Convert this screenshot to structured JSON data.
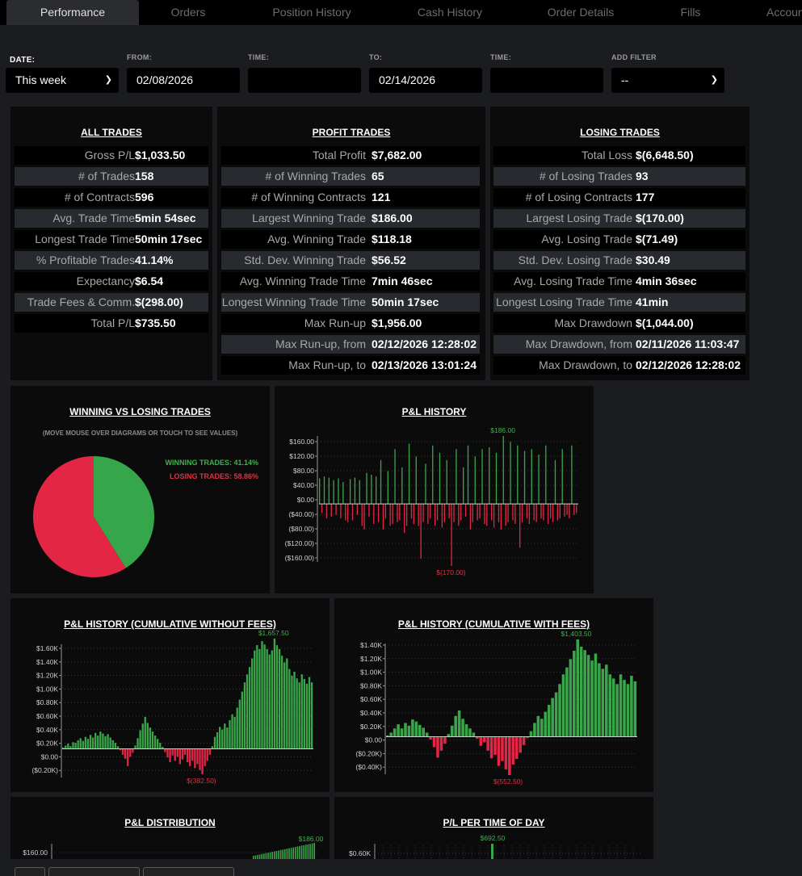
{
  "tabs": [
    {
      "label": "Performance",
      "active": true
    },
    {
      "label": "Orders"
    },
    {
      "label": "Position History"
    },
    {
      "label": "Cash History"
    },
    {
      "label": "Order Details"
    },
    {
      "label": "Fills"
    },
    {
      "label": "Accoun"
    }
  ],
  "filters": {
    "date_label": "DATE:",
    "date_value": "This week",
    "from_label": "FROM:",
    "from_value": "02/08/2026",
    "time1_label": "TIME:",
    "time1_value": "",
    "to_label": "TO:",
    "to_value": "02/14/2026",
    "time2_label": "TIME:",
    "time2_value": "",
    "add_filter_label": "ADD FILTER",
    "add_filter_value": "--"
  },
  "all_trades": {
    "title": "ALL TRADES",
    "rows": [
      {
        "label": "Gross P/L",
        "value": "$1,033.50"
      },
      {
        "label": "# of Trades",
        "value": "158"
      },
      {
        "label": "# of Contracts",
        "value": "596"
      },
      {
        "label": "Avg. Trade Time",
        "value": "5min 54sec"
      },
      {
        "label": "Longest Trade Time",
        "value": "50min 17sec"
      },
      {
        "label": "% Profitable Trades",
        "value": "41.14%"
      },
      {
        "label": "Expectancy",
        "value": "$6.54"
      },
      {
        "label": "Trade Fees & Comm.",
        "value": "$(298.00)"
      },
      {
        "label": "Total P/L",
        "value": "$735.50"
      }
    ]
  },
  "profit_trades": {
    "title": "PROFIT TRADES",
    "rows": [
      {
        "label": "Total Profit",
        "value": "$7,682.00"
      },
      {
        "label": "# of Winning Trades",
        "value": "65"
      },
      {
        "label": "# of Winning Contracts",
        "value": "121"
      },
      {
        "label": "Largest Winning Trade",
        "value": "$186.00"
      },
      {
        "label": "Avg. Winning Trade",
        "value": "$118.18"
      },
      {
        "label": "Std. Dev. Winning Trade",
        "value": "$56.52"
      },
      {
        "label": "Avg. Winning Trade Time",
        "value": "7min 46sec"
      },
      {
        "label": "Longest Winning Trade Time",
        "value": "50min 17sec"
      },
      {
        "label": "Max Run-up",
        "value": "$1,956.00"
      },
      {
        "label": "Max Run-up, from",
        "value": "02/12/2026 12:28:02"
      },
      {
        "label": "Max Run-up, to",
        "value": "02/13/2026 13:01:24"
      }
    ]
  },
  "losing_trades": {
    "title": "LOSING TRADES",
    "rows": [
      {
        "label": "Total Loss",
        "value": "$(6,648.50)"
      },
      {
        "label": "# of Losing Trades",
        "value": "93"
      },
      {
        "label": "# of Losing Contracts",
        "value": "177"
      },
      {
        "label": "Largest Losing Trade",
        "value": "$(170.00)"
      },
      {
        "label": "Avg. Losing Trade",
        "value": "$(71.49)"
      },
      {
        "label": "Std. Dev. Losing Trade",
        "value": "$30.49"
      },
      {
        "label": "Avg. Losing Trade Time",
        "value": "4min 36sec"
      },
      {
        "label": "Longest Losing Trade Time",
        "value": "41min"
      },
      {
        "label": "Max Drawdown",
        "value": "$(1,044.00)"
      },
      {
        "label": "Max Drawdown, from",
        "value": "02/11/2026 11:03:47"
      },
      {
        "label": "Max Drawdown, to",
        "value": "02/12/2026 12:28:02"
      }
    ]
  },
  "colors": {
    "win": "#3aa64a",
    "loss": "#e32645",
    "pie_win": "#35a74a",
    "pie_loss": "#e32645"
  },
  "chart_data": [
    {
      "type": "pie",
      "title": "WINNING VS LOSING TRADES",
      "subtitle": "(MOVE MOUSE OVER DIAGRAMS OR TOUCH TO SEE VALUES)",
      "legend": [
        "WINNING TRADES: 41.14%",
        "LOSING TRADES: 58.86%"
      ],
      "categories": [
        "Winning",
        "Losing"
      ],
      "values": [
        41.14,
        58.86
      ]
    },
    {
      "type": "bar",
      "title": "P&L HISTORY",
      "yticks": [
        "$160.00",
        "$120.00",
        "$80.00",
        "$40.00",
        "$0.00",
        "($40.00)",
        "($80.00)",
        "($120.00)",
        "($160.00)"
      ],
      "ylim": [
        -170,
        186
      ],
      "max_label": "$186.00",
      "min_label": "$(170.00)",
      "values": [
        70,
        -25,
        75,
        -40,
        72,
        -35,
        65,
        -30,
        70,
        -40,
        60,
        -45,
        -50,
        68,
        -45,
        72,
        -30,
        65,
        -60,
        -70,
        85,
        -35,
        80,
        -55,
        75,
        -50,
        120,
        -70,
        -40,
        90,
        -60,
        -55,
        150,
        -50,
        -45,
        100,
        -80,
        -60,
        165,
        -40,
        -55,
        130,
        -60,
        -150,
        -50,
        110,
        -55,
        -40,
        160,
        -60,
        -45,
        140,
        -65,
        -50,
        120,
        -40,
        -170,
        -50,
        150,
        -60,
        -45,
        100,
        -35,
        160,
        -70,
        -50,
        130,
        -45,
        -40,
        150,
        -55,
        -60,
        155,
        -45,
        -65,
        140,
        -50,
        -70,
        186,
        -60,
        -50,
        170,
        -45,
        -55,
        160,
        -120,
        -50,
        145,
        -40,
        -55,
        150,
        -45,
        -50,
        135,
        -40,
        -45,
        160,
        -55,
        -40,
        -50,
        120,
        -45,
        -40,
        150,
        -35,
        -30,
        -40,
        160,
        -30,
        -25
      ]
    },
    {
      "type": "bar",
      "title": "P&L HISTORY (CUMULATIVE WITHOUT FEES)",
      "yticks": [
        "$1.60K",
        "$1.40K",
        "$1.20K",
        "$1.00K",
        "$0.80K",
        "$0.60K",
        "$0.40K",
        "$0.20K",
        "$0.00",
        "($0.20K)"
      ],
      "ylim": [
        -382.5,
        1657.5
      ],
      "max_label": "$1,657.50",
      "min_label": "$(382.50)",
      "values": [
        20,
        50,
        80,
        40,
        100,
        90,
        130,
        160,
        120,
        180,
        150,
        210,
        170,
        240,
        200,
        260,
        230,
        190,
        220,
        170,
        130,
        90,
        40,
        -20,
        -90,
        -150,
        -260,
        -120,
        -60,
        50,
        160,
        280,
        380,
        480,
        390,
        320,
        260,
        200,
        150,
        90,
        30,
        -50,
        -130,
        -200,
        -100,
        -180,
        -120,
        -230,
        -160,
        -90,
        -200,
        -260,
        -180,
        -290,
        -230,
        -320,
        -382.5,
        -260,
        -180,
        -90,
        40,
        180,
        250,
        330,
        290,
        380,
        320,
        430,
        520,
        480,
        620,
        740,
        860,
        1000,
        1120,
        1230,
        1360,
        1480,
        1560,
        1500,
        1620,
        1570,
        1500,
        1420,
        1480,
        1657.5,
        1560,
        1500,
        1400,
        1300,
        1360,
        1200,
        1100,
        1160,
        1060,
        1000,
        1120,
        1050,
        980,
        1080,
        1000
      ]
    },
    {
      "type": "bar",
      "title": "P&L HISTORY (CUMULATIVE WITH FEES)",
      "yticks": [
        "$1.40K",
        "$1.20K",
        "$1.00K",
        "$0.80K",
        "$0.60K",
        "$0.40K",
        "$0.20K",
        "$0.00",
        "($0.20K)",
        "($0.40K)"
      ],
      "ylim": [
        -552.5,
        1403.5
      ],
      "max_label": "$1,403.50",
      "min_label": "$(552.50)",
      "values": [
        20,
        60,
        120,
        180,
        120,
        200,
        160,
        250,
        220,
        170,
        130,
        60,
        -40,
        -150,
        -300,
        -200,
        -100,
        40,
        160,
        300,
        380,
        260,
        180,
        120,
        60,
        -30,
        -130,
        -80,
        -200,
        -310,
        -260,
        -420,
        -350,
        -470,
        -552.5,
        -400,
        -320,
        -230,
        -120,
        -20,
        80,
        200,
        300,
        260,
        360,
        460,
        560,
        640,
        760,
        900,
        1000,
        1120,
        1240,
        1403.5,
        1300,
        1250,
        1180,
        1100,
        1200,
        1060,
        980,
        1040,
        900,
        840,
        760,
        900,
        820,
        760,
        880,
        800
      ]
    },
    {
      "type": "bar",
      "title": "P&L DISTRIBUTION",
      "yticks": [
        "$160.00"
      ],
      "max_label": "$186.00"
    },
    {
      "type": "bar",
      "title": "P/L PER TIME OF DAY",
      "yticks": [
        "$0.60K"
      ],
      "max_label": "$692.50"
    }
  ]
}
